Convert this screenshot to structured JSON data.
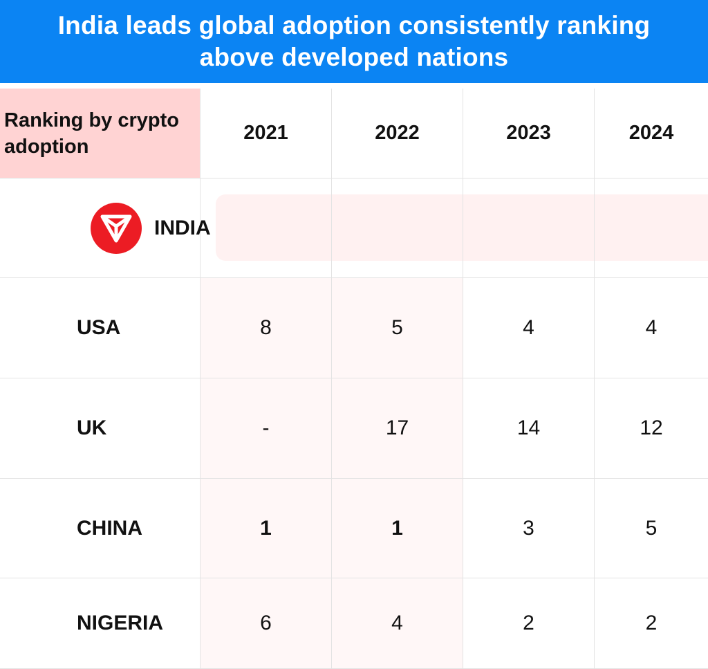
{
  "header": {
    "title": "India leads global adoption consistently ranking above developed nations"
  },
  "colors": {
    "banner": "#0b84f3",
    "corner": "#ffd3d3",
    "logo": "#ec1c24"
  },
  "chart_data": {
    "type": "table",
    "title": "India leads global adoption consistently ranking above developed nations",
    "corner_label": "Ranking by crypto adoption",
    "columns": [
      "2021",
      "2022",
      "2023",
      "2024"
    ],
    "rows": [
      {
        "country": "INDIA",
        "icon": "triangle-logo-icon",
        "values": [
          "",
          "",
          "",
          ""
        ]
      },
      {
        "country": "USA",
        "values": [
          "8",
          "5",
          "4",
          "4"
        ]
      },
      {
        "country": "UK",
        "values": [
          "-",
          "17",
          "14",
          "12"
        ]
      },
      {
        "country": "CHINA",
        "values": [
          "1",
          "1",
          "3",
          "5"
        ]
      },
      {
        "country": "NIGERIA",
        "values": [
          "6",
          "4",
          "2",
          "2"
        ]
      }
    ]
  }
}
